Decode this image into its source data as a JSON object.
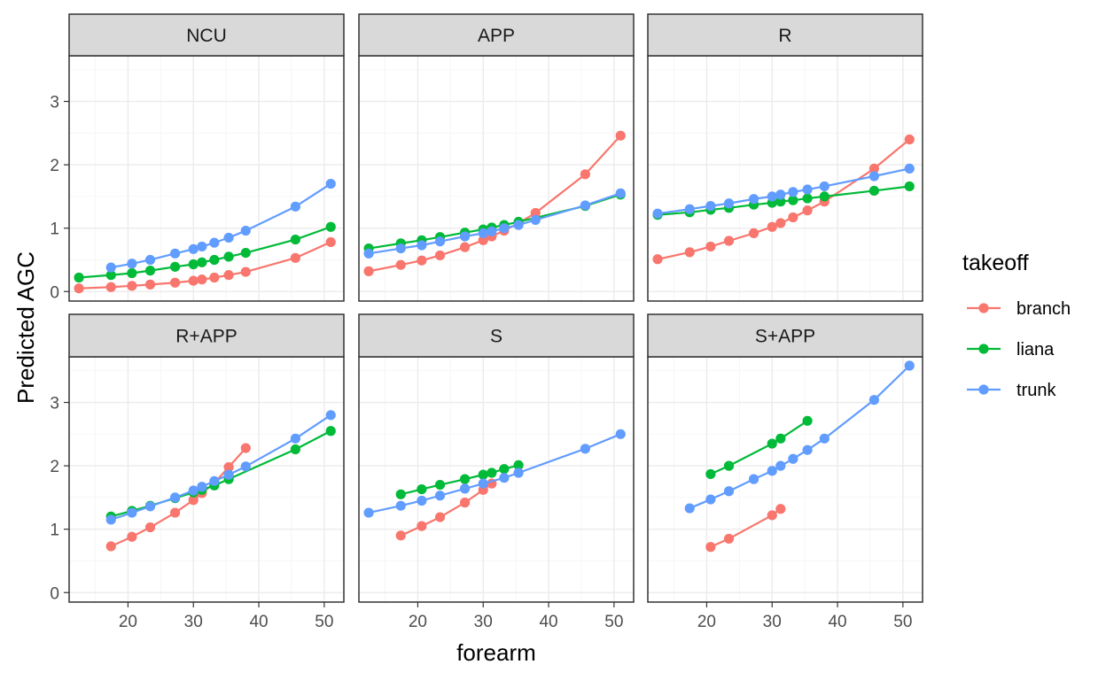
{
  "chart_data": {
    "type": "line",
    "xlabel": "forearm",
    "ylabel": "Predicted AGC",
    "xlim": [
      11,
      53
    ],
    "ylim": [
      -0.15,
      3.72
    ],
    "x_ticks": [
      20,
      30,
      40,
      50
    ],
    "y_ticks": [
      0,
      1,
      2,
      3
    ],
    "grid": true,
    "legend": {
      "title": "takeoff",
      "position": "right",
      "entries": [
        {
          "name": "branch",
          "color": "#F8766D"
        },
        {
          "name": "liana",
          "color": "#00BA38"
        },
        {
          "name": "trunk",
          "color": "#619CFF"
        }
      ]
    },
    "panels": [
      {
        "title": "NCU",
        "series": [
          {
            "name": "branch",
            "points": [
              [
                12.5,
                0.05
              ],
              [
                17.4,
                0.07
              ],
              [
                20.6,
                0.09
              ],
              [
                23.4,
                0.11
              ],
              [
                27.2,
                0.14
              ],
              [
                30,
                0.17
              ],
              [
                31.3,
                0.19
              ],
              [
                33.2,
                0.22
              ],
              [
                35.4,
                0.26
              ],
              [
                38,
                0.31
              ],
              [
                45.6,
                0.53
              ],
              [
                51,
                0.78
              ]
            ]
          },
          {
            "name": "liana",
            "points": [
              [
                12.5,
                0.22
              ],
              [
                17.4,
                0.26
              ],
              [
                20.6,
                0.29
              ],
              [
                23.4,
                0.33
              ],
              [
                27.2,
                0.39
              ],
              [
                30,
                0.43
              ],
              [
                31.3,
                0.46
              ],
              [
                33.2,
                0.5
              ],
              [
                35.4,
                0.55
              ],
              [
                38,
                0.61
              ],
              [
                45.6,
                0.82
              ],
              [
                51,
                1.02
              ]
            ]
          },
          {
            "name": "trunk",
            "points": [
              [
                17.4,
                0.38
              ],
              [
                20.6,
                0.44
              ],
              [
                23.4,
                0.5
              ],
              [
                27.2,
                0.6
              ],
              [
                30,
                0.67
              ],
              [
                31.3,
                0.71
              ],
              [
                33.2,
                0.77
              ],
              [
                35.4,
                0.85
              ],
              [
                38,
                0.96
              ],
              [
                45.6,
                1.34
              ],
              [
                51,
                1.7
              ]
            ]
          }
        ]
      },
      {
        "title": "APP",
        "series": [
          {
            "name": "branch",
            "points": [
              [
                12.5,
                0.32
              ],
              [
                17.4,
                0.42
              ],
              [
                20.6,
                0.49
              ],
              [
                23.4,
                0.57
              ],
              [
                27.2,
                0.7
              ],
              [
                30,
                0.81
              ],
              [
                31.3,
                0.87
              ],
              [
                33.2,
                0.96
              ],
              [
                35.4,
                1.08
              ],
              [
                38,
                1.24
              ],
              [
                45.6,
                1.85
              ],
              [
                51,
                2.46
              ]
            ]
          },
          {
            "name": "liana",
            "points": [
              [
                12.5,
                0.68
              ],
              [
                17.4,
                0.76
              ],
              [
                20.6,
                0.81
              ],
              [
                23.4,
                0.86
              ],
              [
                27.2,
                0.93
              ],
              [
                30,
                0.98
              ],
              [
                31.3,
                1.01
              ],
              [
                33.2,
                1.05
              ],
              [
                35.4,
                1.1
              ],
              [
                45.6,
                1.35
              ],
              [
                51,
                1.53
              ]
            ]
          },
          {
            "name": "trunk",
            "points": [
              [
                12.5,
                0.6
              ],
              [
                17.4,
                0.68
              ],
              [
                20.6,
                0.73
              ],
              [
                23.4,
                0.79
              ],
              [
                27.2,
                0.87
              ],
              [
                30,
                0.92
              ],
              [
                31.3,
                0.95
              ],
              [
                33.2,
                1.0
              ],
              [
                35.4,
                1.05
              ],
              [
                38,
                1.13
              ],
              [
                45.6,
                1.36
              ],
              [
                51,
                1.55
              ]
            ]
          }
        ]
      },
      {
        "title": "R",
        "series": [
          {
            "name": "branch",
            "points": [
              [
                12.5,
                0.51
              ],
              [
                17.4,
                0.62
              ],
              [
                20.6,
                0.71
              ],
              [
                23.4,
                0.8
              ],
              [
                27.2,
                0.92
              ],
              [
                30,
                1.02
              ],
              [
                31.3,
                1.08
              ],
              [
                33.2,
                1.17
              ],
              [
                35.4,
                1.28
              ],
              [
                38,
                1.42
              ],
              [
                45.6,
                1.94
              ],
              [
                51,
                2.4
              ]
            ]
          },
          {
            "name": "liana",
            "points": [
              [
                12.5,
                1.21
              ],
              [
                17.4,
                1.25
              ],
              [
                20.6,
                1.29
              ],
              [
                23.4,
                1.32
              ],
              [
                27.2,
                1.37
              ],
              [
                30,
                1.4
              ],
              [
                31.3,
                1.42
              ],
              [
                33.2,
                1.44
              ],
              [
                35.4,
                1.47
              ],
              [
                38,
                1.5
              ],
              [
                45.6,
                1.59
              ],
              [
                51,
                1.66
              ]
            ]
          },
          {
            "name": "trunk",
            "points": [
              [
                12.5,
                1.23
              ],
              [
                17.4,
                1.3
              ],
              [
                20.6,
                1.35
              ],
              [
                23.4,
                1.39
              ],
              [
                27.2,
                1.46
              ],
              [
                30,
                1.5
              ],
              [
                31.3,
                1.53
              ],
              [
                33.2,
                1.57
              ],
              [
                35.4,
                1.61
              ],
              [
                38,
                1.66
              ],
              [
                45.6,
                1.82
              ],
              [
                51,
                1.94
              ]
            ]
          }
        ]
      },
      {
        "title": "R+APP",
        "series": [
          {
            "name": "branch",
            "points": [
              [
                17.4,
                0.73
              ],
              [
                20.6,
                0.88
              ],
              [
                23.4,
                1.03
              ],
              [
                27.2,
                1.26
              ],
              [
                30,
                1.46
              ],
              [
                31.3,
                1.57
              ],
              [
                33.2,
                1.73
              ],
              [
                35.4,
                1.98
              ],
              [
                38,
                2.28
              ]
            ]
          },
          {
            "name": "liana",
            "points": [
              [
                17.4,
                1.2
              ],
              [
                20.6,
                1.29
              ],
              [
                23.4,
                1.37
              ],
              [
                27.2,
                1.49
              ],
              [
                30,
                1.58
              ],
              [
                31.3,
                1.62
              ],
              [
                33.2,
                1.69
              ],
              [
                35.4,
                1.79
              ],
              [
                45.6,
                2.26
              ],
              [
                51,
                2.55
              ]
            ]
          },
          {
            "name": "trunk",
            "points": [
              [
                17.4,
                1.15
              ],
              [
                20.6,
                1.26
              ],
              [
                23.4,
                1.36
              ],
              [
                27.2,
                1.5
              ],
              [
                30,
                1.61
              ],
              [
                31.3,
                1.67
              ],
              [
                33.2,
                1.76
              ],
              [
                35.4,
                1.86
              ],
              [
                38,
                1.99
              ],
              [
                45.6,
                2.43
              ],
              [
                51,
                2.8
              ]
            ]
          }
        ]
      },
      {
        "title": "S",
        "series": [
          {
            "name": "branch",
            "points": [
              [
                17.4,
                0.9
              ],
              [
                20.6,
                1.05
              ],
              [
                23.4,
                1.19
              ],
              [
                27.2,
                1.42
              ],
              [
                30,
                1.62
              ],
              [
                31.3,
                1.72
              ]
            ]
          },
          {
            "name": "liana",
            "points": [
              [
                17.4,
                1.55
              ],
              [
                20.6,
                1.63
              ],
              [
                23.4,
                1.7
              ],
              [
                27.2,
                1.79
              ],
              [
                30,
                1.86
              ],
              [
                31.3,
                1.89
              ],
              [
                33.2,
                1.95
              ],
              [
                35.4,
                2.01
              ]
            ]
          },
          {
            "name": "trunk",
            "points": [
              [
                12.5,
                1.26
              ],
              [
                17.4,
                1.37
              ],
              [
                20.6,
                1.45
              ],
              [
                23.4,
                1.53
              ],
              [
                27.2,
                1.64
              ],
              [
                30,
                1.72
              ],
              [
                33.2,
                1.81
              ],
              [
                35.4,
                1.89
              ],
              [
                45.6,
                2.27
              ],
              [
                51,
                2.5
              ]
            ]
          }
        ]
      },
      {
        "title": "S+APP",
        "series": [
          {
            "name": "branch",
            "points": [
              [
                20.6,
                0.72
              ],
              [
                23.4,
                0.85
              ],
              [
                30,
                1.22
              ],
              [
                31.3,
                1.32
              ]
            ]
          },
          {
            "name": "liana",
            "points": [
              [
                20.6,
                1.87
              ],
              [
                23.4,
                2.0
              ],
              [
                30,
                2.35
              ],
              [
                31.3,
                2.43
              ],
              [
                35.4,
                2.71
              ]
            ]
          },
          {
            "name": "trunk",
            "points": [
              [
                17.4,
                1.33
              ],
              [
                20.6,
                1.47
              ],
              [
                23.4,
                1.6
              ],
              [
                27.2,
                1.79
              ],
              [
                30,
                1.92
              ],
              [
                31.3,
                2.0
              ],
              [
                33.2,
                2.11
              ],
              [
                35.4,
                2.25
              ],
              [
                38,
                2.43
              ],
              [
                45.6,
                3.04
              ],
              [
                51,
                3.58
              ]
            ]
          }
        ]
      }
    ]
  }
}
